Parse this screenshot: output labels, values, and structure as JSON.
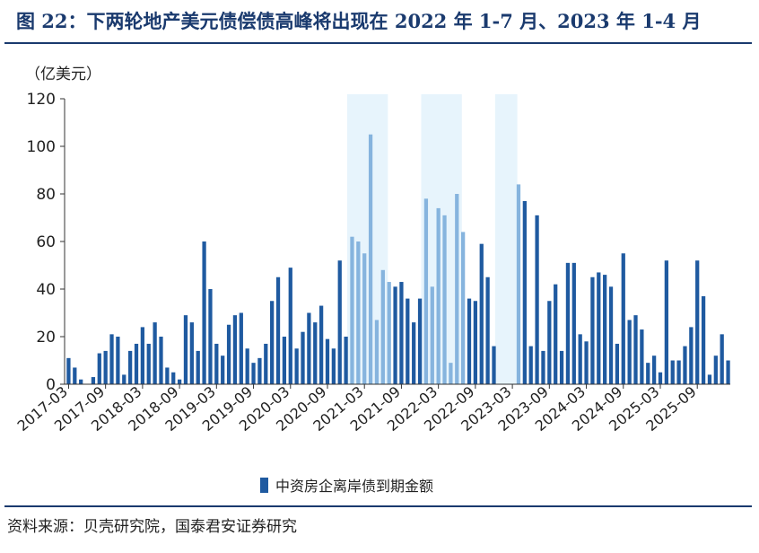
{
  "title": "图 22：下两轮地产美元债偿债高峰将出现在 2022 年 1-7 月、2023 年 1-4 月",
  "source": "资料来源：贝壳研究院，国泰君安证券研究",
  "colors": {
    "bar": "#1f5aa0",
    "bar_highlight": "#86b4de",
    "highlight_band": "#e7f4fc",
    "title": "#1a3a6e"
  },
  "chart_data": {
    "type": "bar",
    "unit": "（亿美元）",
    "ylim": [
      0,
      120
    ],
    "yticks": [
      "0",
      "20",
      "40",
      "60",
      "80",
      "100",
      "120"
    ],
    "xtick_labels": [
      "2017-03",
      "2017-09",
      "2018-03",
      "2018-09",
      "2019-03",
      "2019-09",
      "2020-03",
      "2020-09",
      "2021-03",
      "2021-09",
      "2022-03",
      "2022-09",
      "2023-03",
      "2023-09",
      "2024-03",
      "2024-09",
      "2025-03",
      "2025-09"
    ],
    "series": [
      {
        "name": "中资房企离岸债到期金额",
        "start": "2017-03",
        "values": [
          11,
          7,
          2,
          0,
          3,
          13,
          14,
          21,
          20,
          4,
          14,
          17,
          24,
          17,
          26,
          20,
          7,
          5,
          2,
          29,
          26,
          14,
          60,
          40,
          17,
          12,
          25,
          29,
          30,
          15,
          9,
          11,
          17,
          35,
          45,
          20,
          49,
          15,
          22,
          30,
          26,
          33,
          19,
          15,
          52,
          20,
          62,
          60,
          55,
          105,
          27,
          48,
          43,
          41,
          43,
          36,
          26,
          36,
          78,
          41,
          74,
          71,
          9,
          80,
          64,
          36,
          35,
          59,
          45,
          16,
          0,
          0,
          0,
          84,
          77,
          16,
          71,
          14,
          35,
          42,
          14,
          51,
          51,
          21,
          18,
          45,
          47,
          46,
          41,
          17,
          55,
          27,
          29,
          23,
          9,
          12,
          5,
          52,
          10,
          10,
          16,
          24,
          52,
          37,
          4,
          12,
          21,
          10
        ]
      }
    ],
    "highlight_ranges": [
      [
        "2021-01",
        "2021-07"
      ],
      [
        "2022-01",
        "2022-07"
      ],
      [
        "2023-01",
        "2023-04"
      ]
    ]
  }
}
